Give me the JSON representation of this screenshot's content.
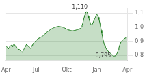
{
  "chart_data": {
    "type": "area",
    "categories": [
      "Apr",
      null,
      null,
      null,
      null,
      null,
      null,
      null,
      null,
      null,
      null,
      null,
      null,
      null,
      null,
      null,
      null,
      null,
      null,
      null,
      null,
      null,
      null,
      null,
      null,
      null,
      null,
      null,
      null,
      null,
      null,
      null,
      null,
      null,
      null,
      null,
      null,
      null,
      null,
      null,
      null,
      null,
      null,
      null,
      null,
      null,
      null,
      null,
      null,
      null,
      null,
      null,
      null,
      "Jul",
      null,
      null,
      null,
      null,
      null,
      null,
      null,
      null,
      null,
      null,
      null,
      null,
      null,
      null,
      null,
      null,
      null,
      null,
      null,
      null,
      null,
      null,
      null,
      null,
      null,
      null,
      null,
      null,
      null,
      null,
      null,
      null,
      null,
      null,
      null,
      null,
      null,
      null,
      null,
      null,
      null,
      null,
      null,
      null,
      null,
      null,
      null,
      null,
      null,
      null,
      null,
      null,
      null,
      "Okt",
      null,
      null,
      null,
      null,
      null,
      null,
      null,
      null,
      null,
      null,
      null,
      null,
      null,
      null,
      null,
      null,
      null,
      null,
      null,
      null,
      null,
      null,
      null,
      null,
      null,
      null,
      null,
      null,
      null,
      null,
      null,
      null,
      null,
      null,
      null,
      null,
      null,
      null,
      null,
      null,
      null,
      null,
      null,
      null,
      null,
      null,
      null,
      null,
      null,
      null,
      null,
      null,
      "Jan",
      null,
      null,
      null,
      null,
      null,
      null,
      null,
      null,
      null,
      null,
      null,
      null,
      null,
      null,
      null,
      null,
      null,
      null,
      null,
      null,
      null,
      null,
      null,
      null,
      null,
      null,
      null,
      null,
      null,
      null,
      null,
      null,
      null,
      null,
      null,
      null,
      null,
      null,
      null,
      null,
      null,
      null,
      null,
      null,
      null,
      null,
      null,
      null,
      null,
      null,
      null,
      null,
      null,
      "Apr"
    ],
    "values": [
      0.868,
      0.862,
      0.856,
      0.85,
      0.845,
      0.852,
      0.86,
      0.865,
      0.869,
      0.872,
      0.867,
      0.862,
      0.87,
      0.875,
      0.88,
      0.875,
      0.868,
      0.862,
      0.858,
      0.855,
      0.852,
      0.848,
      0.844,
      0.84,
      0.836,
      0.832,
      0.828,
      0.825,
      0.822,
      0.826,
      0.832,
      0.84,
      0.848,
      0.856,
      0.864,
      0.872,
      0.878,
      0.875,
      0.87,
      0.865,
      0.86,
      0.856,
      0.852,
      0.848,
      0.856,
      0.864,
      0.872,
      0.88,
      0.886,
      0.89,
      0.894,
      0.898,
      0.902,
      0.906,
      0.91,
      0.914,
      0.918,
      0.92,
      0.922,
      0.924,
      0.926,
      0.928,
      0.93,
      0.932,
      0.934,
      0.938,
      0.942,
      0.946,
      0.95,
      0.954,
      0.958,
      0.962,
      0.965,
      0.968,
      0.971,
      0.974,
      0.977,
      0.98,
      0.983,
      0.986,
      0.988,
      0.99,
      0.992,
      0.994,
      0.996,
      0.998,
      1.0,
      1.001,
      1.002,
      1.003,
      1.004,
      1.005,
      1.006,
      1.007,
      1.006,
      1.005,
      1.004,
      1.003,
      1.002,
      1.001,
      1.0,
      0.999,
      0.997,
      0.995,
      0.993,
      0.991,
      0.989,
      0.987,
      0.985,
      0.983,
      0.981,
      0.98,
      0.979,
      0.978,
      0.977,
      0.976,
      0.975,
      0.974,
      0.975,
      0.976,
      0.977,
      0.978,
      0.979,
      0.98,
      0.981,
      0.982,
      0.983,
      0.984,
      0.986,
      0.988,
      0.99,
      0.992,
      0.995,
      1.002,
      1.012,
      1.025,
      1.04,
      1.058,
      1.072,
      1.088,
      1.098,
      1.107,
      1.11,
      1.106,
      1.095,
      1.08,
      1.065,
      1.05,
      1.038,
      1.025,
      1.018,
      1.015,
      1.02,
      1.028,
      1.038,
      1.048,
      1.058,
      1.068,
      1.078,
      1.085,
      1.09,
      1.088,
      1.082,
      1.07,
      1.055,
      1.038,
      1.02,
      1.0,
      0.978,
      0.956,
      0.934,
      0.914,
      0.896,
      0.882,
      0.87,
      0.86,
      0.852,
      0.845,
      0.839,
      0.834,
      0.83,
      0.826,
      0.822,
      0.818,
      0.814,
      0.81,
      0.806,
      0.803,
      0.8,
      0.797,
      0.795,
      0.795,
      0.796,
      0.798,
      0.802,
      0.808,
      0.816,
      0.826,
      0.838,
      0.852,
      0.866,
      0.878,
      0.888,
      0.895,
      0.9,
      0.904,
      0.908,
      0.912,
      0.916,
      0.92,
      0.922,
      0.924,
      0.926,
      0.928,
      0.93
    ],
    "color": "#1a7a1a",
    "ylim": [
      0.765,
      1.135
    ],
    "yticks": [
      {
        "value": 0.8,
        "label": "0,8"
      },
      {
        "value": 0.9,
        "label": "0,9"
      },
      {
        "value": 1.0,
        "label": "1,0"
      },
      {
        "value": 1.1,
        "label": "1,1"
      }
    ],
    "grid": true,
    "annotations": [
      {
        "text": "1,110",
        "x": 142,
        "y": 1.11
      },
      {
        "text": "0,795",
        "x": 190,
        "y": 0.795
      }
    ]
  }
}
